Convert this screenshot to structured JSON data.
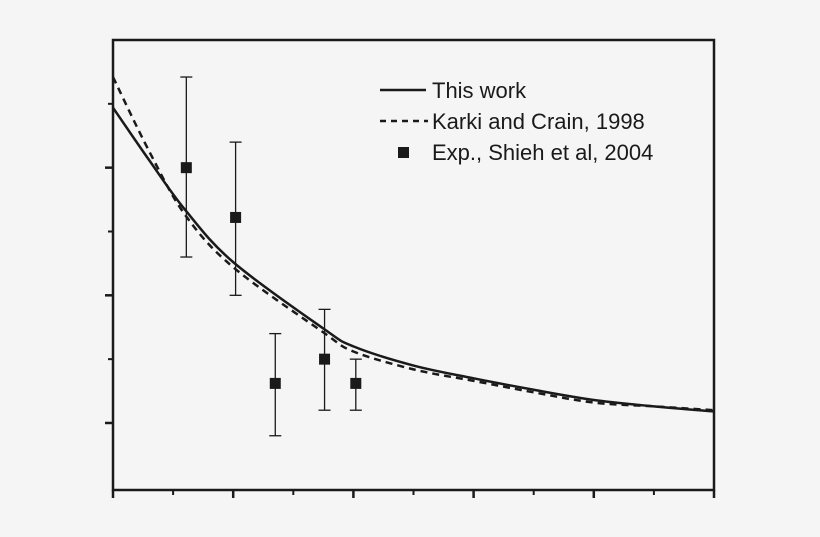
{
  "chart_data": {
    "type": "line",
    "title": "",
    "xlabel": "",
    "ylabel": "",
    "xlim": [
      0,
      5
    ],
    "ylim": [
      0.475,
      4.0
    ],
    "x_major_ticks": [
      0,
      1,
      2,
      3,
      4,
      5
    ],
    "x_minor_ticks": [
      0.5,
      1.5,
      2.5,
      3.5,
      4.5
    ],
    "y_major_ticks": [
      1,
      2,
      3
    ],
    "y_minor_ticks": [
      1.5,
      2.5,
      3.5
    ],
    "tick_labels_shown": false,
    "grid": false,
    "legend_position": "top-right",
    "series": [
      {
        "name": "This work",
        "style": "solid",
        "x": [
          0,
          0.3,
          0.6,
          1.0,
          1.75,
          2.0,
          2.5,
          3.0,
          3.5,
          4.0,
          4.5,
          5.0
        ],
        "y": [
          3.47,
          3.06,
          2.67,
          2.26,
          1.74,
          1.6,
          1.45,
          1.35,
          1.26,
          1.18,
          1.13,
          1.09
        ]
      },
      {
        "name": "Karki and Crain, 1998",
        "style": "dashed",
        "x": [
          0,
          0.3,
          0.6,
          1.0,
          1.75,
          2.0,
          2.5,
          3.0,
          3.5,
          4.0,
          4.5,
          5.0
        ],
        "y": [
          3.71,
          3.13,
          2.63,
          2.22,
          1.71,
          1.56,
          1.42,
          1.33,
          1.24,
          1.16,
          1.13,
          1.1
        ]
      },
      {
        "name": "Exp., Shieh et al, 2004",
        "style": "square-markers",
        "x": [
          0.61,
          1.02,
          1.35,
          1.76,
          2.02
        ],
        "y": [
          3.0,
          2.61,
          1.31,
          1.5,
          1.31
        ],
        "err_low": [
          2.3,
          2.0,
          0.9,
          1.1,
          1.1
        ],
        "err_high": [
          3.71,
          3.2,
          1.7,
          1.89,
          1.5
        ]
      }
    ],
    "legend": [
      "This work",
      "Karki and Crain, 1998",
      "Exp., Shieh et al, 2004"
    ]
  },
  "colors": {
    "background": "#f5f5f5",
    "ink": "#1a1a1a"
  }
}
